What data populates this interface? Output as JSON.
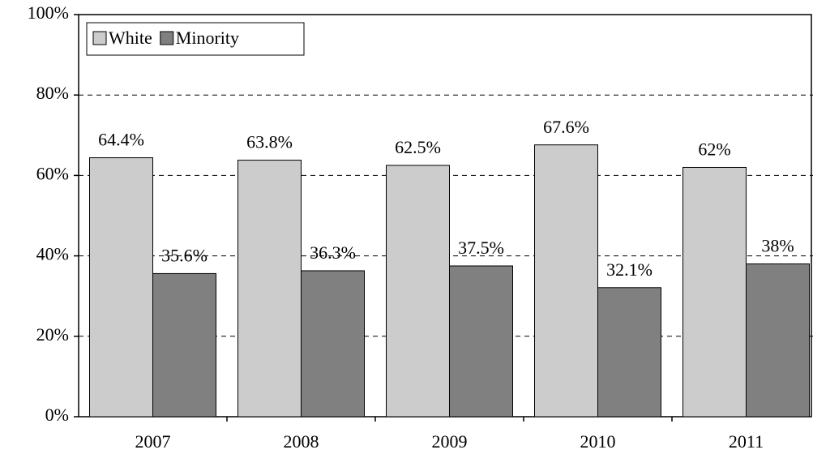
{
  "chart_data": {
    "type": "bar",
    "categories": [
      "2007",
      "2008",
      "2009",
      "2010",
      "2011"
    ],
    "series": [
      {
        "name": "White",
        "color": "#cccccc",
        "values": [
          64.4,
          63.8,
          62.5,
          67.6,
          62
        ],
        "value_labels": [
          "64.4%",
          "63.8%",
          "62.5%",
          "67.6%",
          "62%"
        ]
      },
      {
        "name": "Minority",
        "color": "#808080",
        "values": [
          35.6,
          36.3,
          37.5,
          32.1,
          38
        ],
        "value_labels": [
          "35.6%",
          "36.3%",
          "37.5%",
          "32.1%",
          "38%"
        ]
      }
    ],
    "ylim": [
      0,
      100
    ],
    "yticks": [
      {
        "value": 0,
        "label": "0%"
      },
      {
        "value": 20,
        "label": "20%"
      },
      {
        "value": 40,
        "label": "40%"
      },
      {
        "value": 60,
        "label": "60%"
      },
      {
        "value": 80,
        "label": "80%"
      },
      {
        "value": 100,
        "label": "100%"
      }
    ],
    "grid": true,
    "legend": "top-left"
  }
}
